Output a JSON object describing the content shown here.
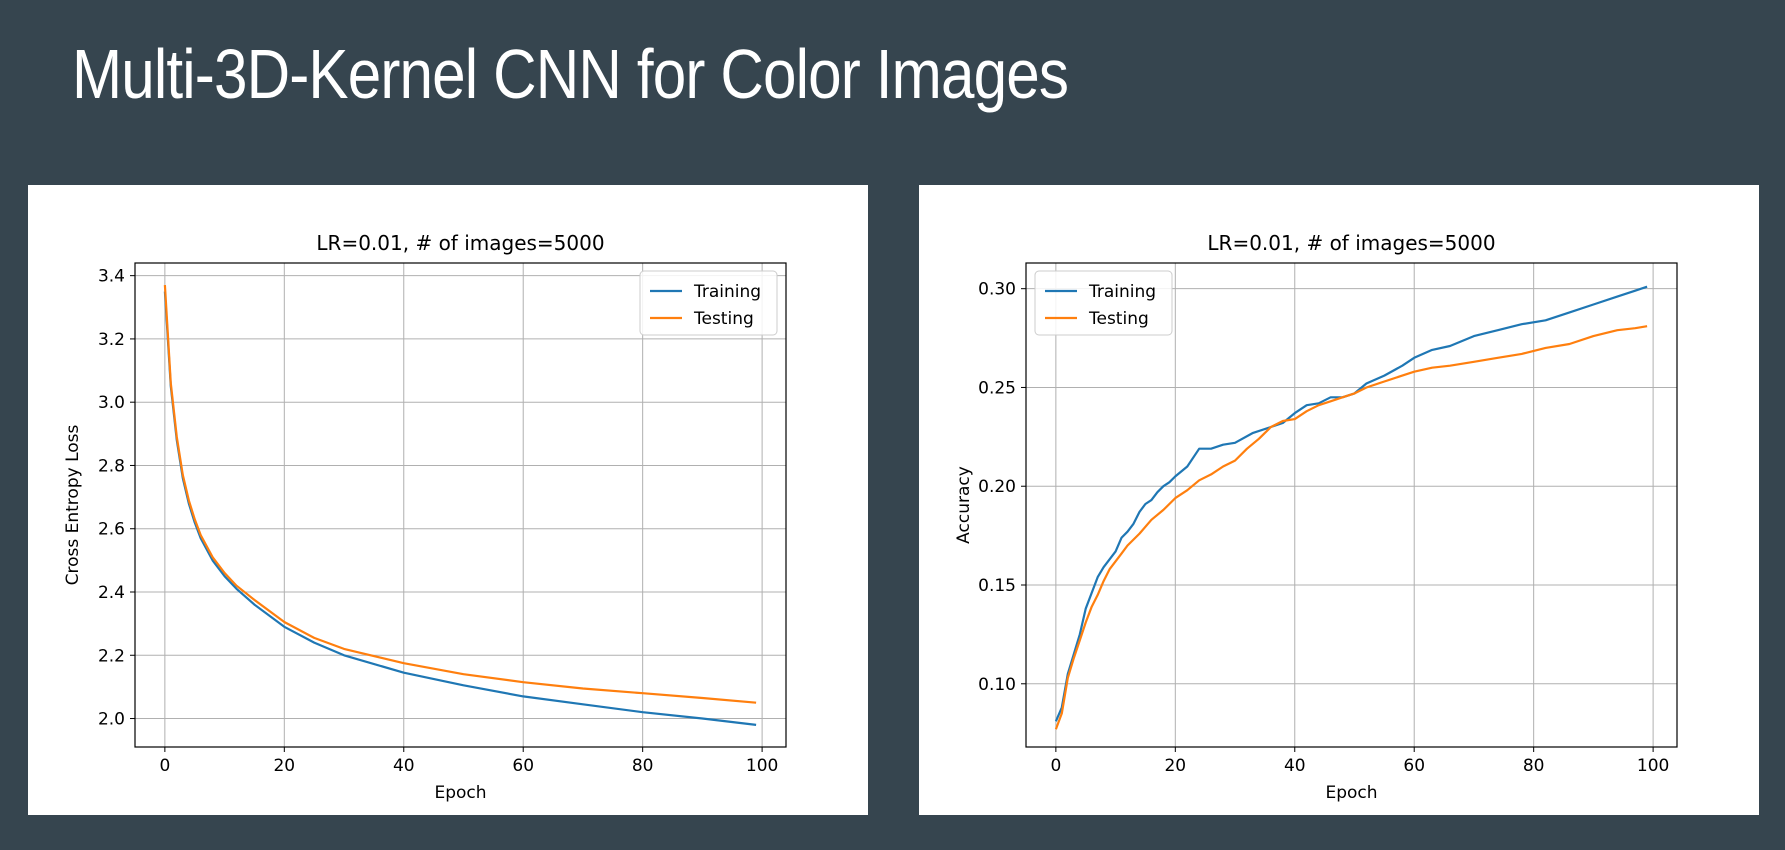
{
  "slide": {
    "title": "Multi-3D-Kernel CNN for Color Images"
  },
  "chart_data": [
    {
      "type": "line",
      "title": "LR=0.01, # of images=5000",
      "xlabel": "Epoch",
      "ylabel": "Cross Entropy Loss",
      "xlim": [
        -5,
        104
      ],
      "ylim": [
        1.91,
        3.44
      ],
      "xticks": [
        0,
        20,
        40,
        60,
        80,
        100
      ],
      "yticks": [
        2.0,
        2.2,
        2.4,
        2.6,
        2.8,
        3.0,
        3.2,
        3.4
      ],
      "ytick_labels": [
        "2.0",
        "2.2",
        "2.4",
        "2.6",
        "2.8",
        "3.0",
        "3.2",
        "3.4"
      ],
      "grid": true,
      "legend": "upper right",
      "series": [
        {
          "name": "Training",
          "color": "#1f77b4",
          "x": [
            0,
            1,
            2,
            3,
            4,
            5,
            6,
            8,
            10,
            12,
            15,
            20,
            25,
            30,
            40,
            50,
            60,
            70,
            80,
            90,
            99
          ],
          "y": [
            3.35,
            3.05,
            2.88,
            2.76,
            2.68,
            2.62,
            2.57,
            2.5,
            2.45,
            2.41,
            2.36,
            2.29,
            2.24,
            2.2,
            2.145,
            2.105,
            2.07,
            2.045,
            2.02,
            2.0,
            1.98
          ]
        },
        {
          "name": "Testing",
          "color": "#ff7f0e",
          "x": [
            0,
            1,
            2,
            3,
            4,
            5,
            6,
            8,
            10,
            12,
            15,
            20,
            25,
            30,
            40,
            50,
            60,
            70,
            80,
            90,
            99
          ],
          "y": [
            3.37,
            3.06,
            2.89,
            2.77,
            2.69,
            2.63,
            2.58,
            2.51,
            2.46,
            2.42,
            2.375,
            2.305,
            2.255,
            2.22,
            2.175,
            2.14,
            2.115,
            2.095,
            2.08,
            2.065,
            2.05
          ]
        }
      ]
    },
    {
      "type": "line",
      "title": "LR=0.01, # of images=5000",
      "xlabel": "Epoch",
      "ylabel": "Accuracy",
      "xlim": [
        -5,
        104
      ],
      "ylim": [
        0.068,
        0.313
      ],
      "xticks": [
        0,
        20,
        40,
        60,
        80,
        100
      ],
      "yticks": [
        0.1,
        0.15,
        0.2,
        0.25,
        0.3
      ],
      "ytick_labels": [
        "0.10",
        "0.15",
        "0.20",
        "0.25",
        "0.30"
      ],
      "grid": true,
      "legend": "upper left",
      "series": [
        {
          "name": "Training",
          "color": "#1f77b4",
          "x": [
            0,
            1,
            2,
            3,
            4,
            5,
            6,
            7,
            8,
            9,
            10,
            11,
            12,
            13,
            14,
            15,
            16,
            17,
            18,
            19,
            20,
            22,
            24,
            26,
            28,
            30,
            33,
            36,
            38,
            40,
            42,
            44,
            46,
            48,
            50,
            52,
            55,
            58,
            60,
            63,
            66,
            70,
            74,
            78,
            82,
            86,
            90,
            94,
            97,
            99
          ],
          "y": [
            0.081,
            0.088,
            0.105,
            0.115,
            0.125,
            0.138,
            0.146,
            0.154,
            0.159,
            0.163,
            0.167,
            0.174,
            0.177,
            0.181,
            0.187,
            0.191,
            0.193,
            0.197,
            0.2,
            0.202,
            0.205,
            0.21,
            0.219,
            0.219,
            0.221,
            0.222,
            0.227,
            0.23,
            0.232,
            0.237,
            0.241,
            0.242,
            0.245,
            0.245,
            0.247,
            0.252,
            0.256,
            0.261,
            0.265,
            0.269,
            0.271,
            0.276,
            0.279,
            0.282,
            0.284,
            0.288,
            0.292,
            0.296,
            0.299,
            0.301
          ]
        },
        {
          "name": "Testing",
          "color": "#ff7f0e",
          "x": [
            0,
            1,
            2,
            3,
            4,
            5,
            6,
            7,
            8,
            9,
            10,
            11,
            12,
            14,
            16,
            18,
            20,
            22,
            24,
            26,
            28,
            30,
            32,
            34,
            36,
            38,
            40,
            42,
            44,
            46,
            48,
            50,
            52,
            55,
            58,
            60,
            63,
            66,
            70,
            74,
            78,
            82,
            86,
            90,
            94,
            97,
            99
          ],
          "y": [
            0.077,
            0.085,
            0.103,
            0.113,
            0.122,
            0.131,
            0.139,
            0.145,
            0.152,
            0.158,
            0.162,
            0.166,
            0.17,
            0.176,
            0.183,
            0.188,
            0.194,
            0.198,
            0.203,
            0.206,
            0.21,
            0.213,
            0.219,
            0.224,
            0.23,
            0.233,
            0.234,
            0.238,
            0.241,
            0.243,
            0.245,
            0.247,
            0.25,
            0.253,
            0.256,
            0.258,
            0.26,
            0.261,
            0.263,
            0.265,
            0.267,
            0.27,
            0.272,
            0.276,
            0.279,
            0.28,
            0.281
          ]
        }
      ]
    }
  ]
}
